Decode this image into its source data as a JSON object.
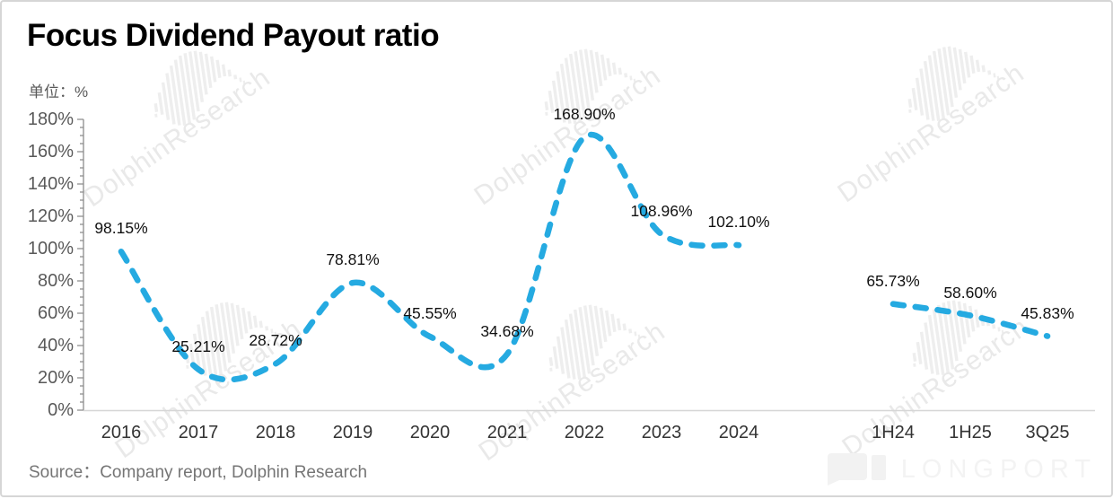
{
  "page": {
    "title": "Focus Dividend Payout ratio",
    "unit_label": "单位：%",
    "source": "Source：Company report, Dolphin Research",
    "watermark": "DolphinResearch",
    "logo": "LONGPORT"
  },
  "colors": {
    "line": "#25AAE1",
    "title": "#000000",
    "axisText": "#595959",
    "xAxisText": "#333333",
    "dataLabel": "#111111",
    "yAxisLine": "#8C8C8C",
    "xAxisLine": "#D6D6D6",
    "subtext": "#757575",
    "watermark": "#E9E9E9",
    "logo": "#F3F3F3",
    "border": "#D6D6D6"
  },
  "chart_data": {
    "type": "line",
    "title": "Focus Dividend Payout ratio",
    "unit": "%",
    "categories": [
      "2016",
      "2017",
      "2018",
      "2019",
      "2020",
      "2021",
      "2022",
      "2023",
      "2024",
      "",
      "1H24",
      "1H25",
      "3Q25"
    ],
    "values": [
      98.15,
      25.21,
      28.72,
      78.81,
      45.55,
      34.68,
      168.9,
      108.96,
      102.1,
      null,
      65.73,
      58.6,
      45.83
    ],
    "data_labels": [
      "98.15%",
      "25.21%",
      "28.72%",
      "78.81%",
      "45.55%",
      "34.68%",
      "168.90%",
      "108.96%",
      "102.10%",
      "",
      "65.73%",
      "58.60%",
      "45.83%"
    ],
    "ylim": [
      0,
      180
    ],
    "y_major_step": 20,
    "y_minor_step": 5,
    "y_tick_suffix": "%",
    "line_style": "dashed",
    "smooth": true,
    "legend": "none",
    "grid": "off"
  }
}
